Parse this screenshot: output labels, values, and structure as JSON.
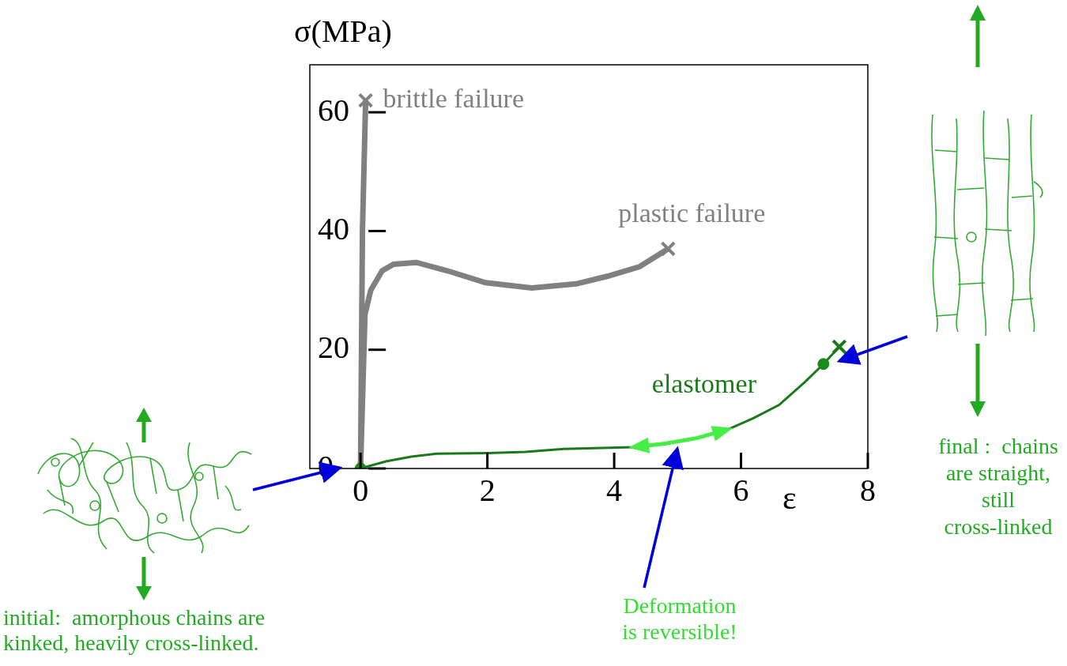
{
  "chart_data": {
    "type": "line",
    "xlabel": "ε",
    "ylabel": "σ(MPa)",
    "xlim": [
      -0.8,
      8
    ],
    "xticks": [
      0,
      2,
      4,
      6,
      8
    ],
    "ylim": [
      0,
      68
    ],
    "yticks": [
      0,
      20,
      40,
      60
    ],
    "grid": false,
    "series": [
      {
        "name": "brittle failure",
        "color": "#808080",
        "marker": "x",
        "x": [
          0,
          0.03,
          0.08
        ],
        "values": [
          0,
          40,
          62
        ]
      },
      {
        "name": "plastic failure",
        "color": "#808080",
        "marker": "x",
        "x": [
          0,
          0.07,
          0.16,
          0.34,
          0.52,
          0.88,
          1.37,
          1.97,
          2.7,
          3.4,
          3.9,
          4.4,
          4.85
        ],
        "values": [
          0,
          26,
          30,
          33.3,
          34.4,
          34.7,
          33.3,
          31.3,
          30.4,
          31.1,
          32.4,
          34,
          37
        ]
      },
      {
        "name": "elastomer",
        "color": "#1a7a1a",
        "marker": "x",
        "x": [
          0,
          0.4,
          0.8,
          1.2,
          2,
          2.6,
          3.2,
          4.3,
          4.8,
          5.3,
          5.8,
          6.2,
          6.6,
          7,
          7.3,
          7.55
        ],
        "values": [
          0,
          1.2,
          2,
          2.5,
          2.6,
          2.8,
          3.3,
          3.6,
          4.2,
          5.1,
          6.6,
          8.5,
          10.7,
          14.5,
          17.6,
          20.5
        ]
      },
      {
        "color": "#44ee44",
        "line_style": "double_arrow",
        "x": [
          4.3,
          4.8,
          5.3,
          5.8
        ],
        "values": [
          3.6,
          4.2,
          5.1,
          6.6
        ]
      },
      {
        "type": "scatter",
        "color": "#1a8a1a",
        "marker": "circle",
        "x": [
          0,
          7.3
        ],
        "values": [
          0,
          17.6
        ]
      }
    ],
    "annotations": {
      "initial": {
        "text": [
          "initial:  amorphous chains are",
          "kinked, heavily cross-linked."
        ],
        "color": "#22aa22"
      },
      "final": {
        "text": [
          "final :  chains",
          "are straight,",
          "still",
          "cross-linked"
        ],
        "color": "#22aa22"
      },
      "reversible": {
        "text": [
          "Deformation",
          "is reversible!"
        ],
        "color": "#33dd33"
      }
    }
  }
}
